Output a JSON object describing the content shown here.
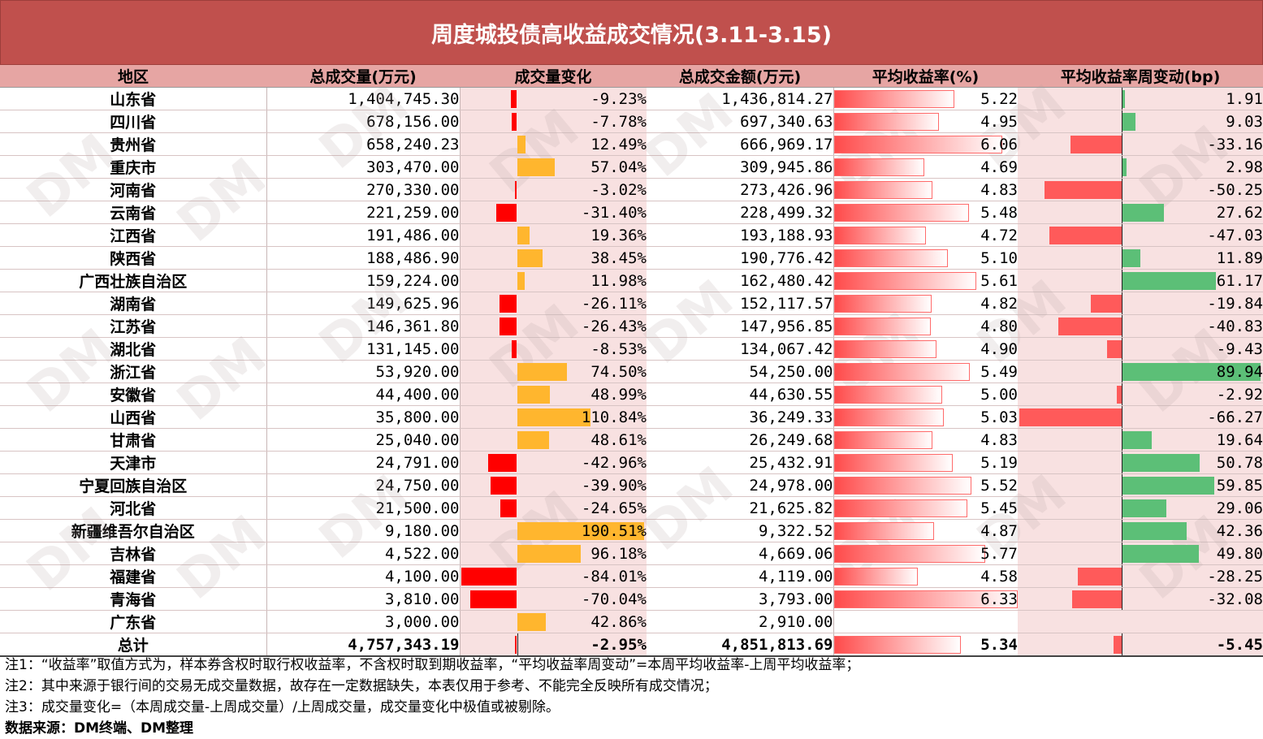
{
  "title": "周度城投债高收益成交情况(3.11-3.15)",
  "headers": [
    "地区",
    "总成交量(万元)",
    "成交量变化",
    "总成交金额(万元)",
    "平均收益率(%)",
    "平均收益率周变动(bp)"
  ],
  "rows": [
    {
      "region": "山东省",
      "volume": "1,404,745.30",
      "change": "-9.23%",
      "change_value": -9.23,
      "amount": "1,436,814.27",
      "yield": "5.22",
      "yield_value": 5.22,
      "bp": "1.91",
      "bp_value": 1.91
    },
    {
      "region": "四川省",
      "volume": "678,156.00",
      "change": "-7.78%",
      "change_value": -7.78,
      "amount": "697,340.63",
      "yield": "4.95",
      "yield_value": 4.95,
      "bp": "9.03",
      "bp_value": 9.03
    },
    {
      "region": "贵州省",
      "volume": "658,240.23",
      "change": "12.49%",
      "change_value": 12.49,
      "amount": "666,969.17",
      "yield": "6.06",
      "yield_value": 6.06,
      "bp": "-33.16",
      "bp_value": -33.16
    },
    {
      "region": "重庆市",
      "volume": "303,470.00",
      "change": "57.04%",
      "change_value": 57.04,
      "amount": "309,945.86",
      "yield": "4.69",
      "yield_value": 4.69,
      "bp": "2.98",
      "bp_value": 2.98
    },
    {
      "region": "河南省",
      "volume": "270,330.00",
      "change": "-3.02%",
      "change_value": -3.02,
      "amount": "273,426.96",
      "yield": "4.83",
      "yield_value": 4.83,
      "bp": "-50.25",
      "bp_value": -50.25
    },
    {
      "region": "云南省",
      "volume": "221,259.00",
      "change": "-31.40%",
      "change_value": -31.4,
      "amount": "228,499.32",
      "yield": "5.48",
      "yield_value": 5.48,
      "bp": "27.62",
      "bp_value": 27.62
    },
    {
      "region": "江西省",
      "volume": "191,486.00",
      "change": "19.36%",
      "change_value": 19.36,
      "amount": "193,188.93",
      "yield": "4.72",
      "yield_value": 4.72,
      "bp": "-47.03",
      "bp_value": -47.03
    },
    {
      "region": "陕西省",
      "volume": "188,486.90",
      "change": "38.45%",
      "change_value": 38.45,
      "amount": "190,776.42",
      "yield": "5.10",
      "yield_value": 5.1,
      "bp": "11.89",
      "bp_value": 11.89
    },
    {
      "region": "广西壮族自治区",
      "volume": "159,224.00",
      "change": "11.98%",
      "change_value": 11.98,
      "amount": "162,480.42",
      "yield": "5.61",
      "yield_value": 5.61,
      "bp": "61.17",
      "bp_value": 61.17
    },
    {
      "region": "湖南省",
      "volume": "149,625.96",
      "change": "-26.11%",
      "change_value": -26.11,
      "amount": "152,117.57",
      "yield": "4.82",
      "yield_value": 4.82,
      "bp": "-19.84",
      "bp_value": -19.84
    },
    {
      "region": "江苏省",
      "volume": "146,361.80",
      "change": "-26.43%",
      "change_value": -26.43,
      "amount": "147,956.85",
      "yield": "4.80",
      "yield_value": 4.8,
      "bp": "-40.83",
      "bp_value": -40.83
    },
    {
      "region": "湖北省",
      "volume": "131,145.00",
      "change": "-8.53%",
      "change_value": -8.53,
      "amount": "134,067.42",
      "yield": "4.90",
      "yield_value": 4.9,
      "bp": "-9.43",
      "bp_value": -9.43
    },
    {
      "region": "浙江省",
      "volume": "53,920.00",
      "change": "74.50%",
      "change_value": 74.5,
      "amount": "54,250.00",
      "yield": "5.49",
      "yield_value": 5.49,
      "bp": "89.94",
      "bp_value": 89.94
    },
    {
      "region": "安徽省",
      "volume": "44,400.00",
      "change": "48.99%",
      "change_value": 48.99,
      "amount": "44,630.55",
      "yield": "5.00",
      "yield_value": 5.0,
      "bp": "-2.92",
      "bp_value": -2.92
    },
    {
      "region": "山西省",
      "volume": "35,800.00",
      "change": "110.84%",
      "change_value": 110.84,
      "amount": "36,249.33",
      "yield": "5.03",
      "yield_value": 5.03,
      "bp": "-66.27",
      "bp_value": -66.27
    },
    {
      "region": "甘肃省",
      "volume": "25,040.00",
      "change": "48.61%",
      "change_value": 48.61,
      "amount": "26,249.68",
      "yield": "4.83",
      "yield_value": 4.83,
      "bp": "19.64",
      "bp_value": 19.64
    },
    {
      "region": "天津市",
      "volume": "24,791.00",
      "change": "-42.96%",
      "change_value": -42.96,
      "amount": "25,432.91",
      "yield": "5.19",
      "yield_value": 5.19,
      "bp": "50.78",
      "bp_value": 50.78
    },
    {
      "region": "宁夏回族自治区",
      "volume": "24,750.00",
      "change": "-39.90%",
      "change_value": -39.9,
      "amount": "24,978.00",
      "yield": "5.52",
      "yield_value": 5.52,
      "bp": "59.85",
      "bp_value": 59.85
    },
    {
      "region": "河北省",
      "volume": "21,500.00",
      "change": "-24.65%",
      "change_value": -24.65,
      "amount": "21,625.82",
      "yield": "5.45",
      "yield_value": 5.45,
      "bp": "29.06",
      "bp_value": 29.06
    },
    {
      "region": "新疆维吾尔自治区",
      "volume": "9,180.00",
      "change": "190.51%",
      "change_value": 190.51,
      "amount": "9,322.52",
      "yield": "4.87",
      "yield_value": 4.87,
      "bp": "42.36",
      "bp_value": 42.36
    },
    {
      "region": "吉林省",
      "volume": "4,522.00",
      "change": "96.18%",
      "change_value": 96.18,
      "amount": "4,669.06",
      "yield": "5.77",
      "yield_value": 5.77,
      "bp": "49.80",
      "bp_value": 49.8
    },
    {
      "region": "福建省",
      "volume": "4,100.00",
      "change": "-84.01%",
      "change_value": -84.01,
      "amount": "4,119.00",
      "yield": "4.58",
      "yield_value": 4.58,
      "bp": "-28.25",
      "bp_value": -28.25
    },
    {
      "region": "青海省",
      "volume": "3,810.00",
      "change": "-70.04%",
      "change_value": -70.04,
      "amount": "3,793.00",
      "yield": "6.33",
      "yield_value": 6.33,
      "bp": "-32.08",
      "bp_value": -32.08
    },
    {
      "region": "广东省",
      "volume": "3,000.00",
      "change": "42.86%",
      "change_value": 42.86,
      "amount": "2,910.00",
      "yield": "",
      "yield_value": null,
      "bp": "",
      "bp_value": null
    }
  ],
  "total": {
    "region": "总计",
    "volume": "4,757,343.19",
    "change": "-2.95%",
    "change_value": -2.95,
    "amount": "4,851,813.69",
    "yield": "5.34",
    "yield_value": 5.34,
    "bp": "-5.45",
    "bp_value": -5.45
  },
  "notes": [
    "注1：“收益率”取值方式为，样本券含权时取行权收益率，不含权时取到期收益率，“平均收益率周变动”=本周平均收益率-上周平均收益率；",
    "注2：其中来源于银行间的交易无成交量数据，故存在一定数据缺失，本表仅用于参考、不能完全反映所有成交情况；",
    "注3：成交量变化=（本周成交量-上周成交量）/上周成交量，成交量变化中极值或被剔除。",
    "数据来源：DM终端、DM整理"
  ],
  "watermark": "DM",
  "colors": {
    "title_bg": "#c0504d",
    "header_bg": "#e6a5a3",
    "neg_change": "#ff0000",
    "pos_change": "#ffb62e",
    "yield_bar": "#ff4b4b",
    "bp_neg": "#ff5a5a",
    "bp_pos": "#5cbf77"
  }
}
